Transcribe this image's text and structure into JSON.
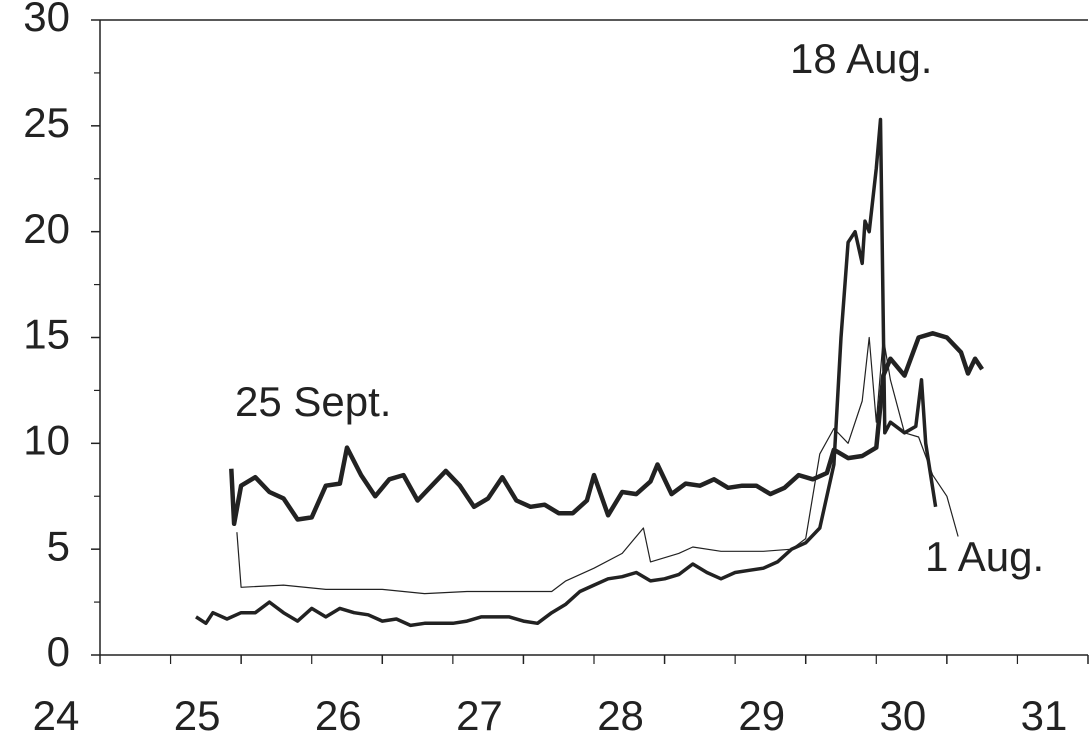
{
  "chart_data": {
    "type": "line",
    "xlim": [
      24,
      31
    ],
    "xticks": [
      24,
      25,
      26,
      27,
      28,
      29,
      30,
      31
    ],
    "xminor": [
      24.5,
      25.5,
      26.5,
      27.5,
      28.5,
      29.5,
      30.5
    ],
    "ylim": [
      0,
      30
    ],
    "yticks": [
      0,
      5,
      10,
      15,
      20,
      25,
      30
    ],
    "yminor": [
      2.5,
      7.5,
      12.5,
      17.5,
      22.5,
      27.5
    ],
    "series": [
      {
        "name": "25 Sept.",
        "color": "#222222",
        "x": [
          24.93,
          24.95,
          25.0,
          25.1,
          25.2,
          25.3,
          25.4,
          25.5,
          25.6,
          25.7,
          25.75,
          25.85,
          25.95,
          26.05,
          26.15,
          26.25,
          26.35,
          26.45,
          26.55,
          26.65,
          26.75,
          26.85,
          26.95,
          27.05,
          27.15,
          27.25,
          27.35,
          27.45,
          27.5,
          27.6,
          27.7,
          27.8,
          27.9,
          27.95,
          28.05,
          28.15,
          28.25,
          28.35,
          28.45,
          28.55,
          28.65,
          28.75,
          28.85,
          28.95,
          29.05,
          29.15,
          29.2,
          29.3,
          29.4,
          29.5,
          29.55,
          29.6,
          29.7,
          29.8,
          29.9,
          30.0,
          30.1,
          30.15,
          30.2,
          30.25
        ],
        "values": [
          8.8,
          6.2,
          8.0,
          8.4,
          7.7,
          7.4,
          6.4,
          6.5,
          8.0,
          8.1,
          9.8,
          8.5,
          7.5,
          8.3,
          8.5,
          7.3,
          8.0,
          8.7,
          8.0,
          7.0,
          7.4,
          8.4,
          7.3,
          7.0,
          7.1,
          6.7,
          6.7,
          7.3,
          8.5,
          6.6,
          7.7,
          7.6,
          8.2,
          9.0,
          7.6,
          8.1,
          8.0,
          8.3,
          7.9,
          8.0,
          8.0,
          7.6,
          7.9,
          8.5,
          8.3,
          8.6,
          9.7,
          9.3,
          9.4,
          9.8,
          13.2,
          14.0,
          13.2,
          15.0,
          15.2,
          15.0,
          14.3,
          13.3,
          14.0,
          13.5
        ]
      },
      {
        "name": "18 Aug.",
        "color": "#222222",
        "x": [
          24.68,
          24.75,
          24.8,
          24.9,
          25.0,
          25.1,
          25.2,
          25.3,
          25.4,
          25.5,
          25.6,
          25.7,
          25.8,
          25.9,
          26.0,
          26.1,
          26.2,
          26.3,
          26.4,
          26.5,
          26.6,
          26.7,
          26.8,
          26.9,
          27.0,
          27.1,
          27.2,
          27.3,
          27.4,
          27.5,
          27.6,
          27.7,
          27.8,
          27.9,
          28.0,
          28.1,
          28.2,
          28.3,
          28.4,
          28.5,
          28.6,
          28.7,
          28.8,
          28.9,
          29.0,
          29.1,
          29.2,
          29.25,
          29.3,
          29.35,
          29.4,
          29.42,
          29.45,
          29.5,
          29.53,
          29.56,
          29.6,
          29.7,
          29.78,
          29.82,
          29.85,
          29.92
        ],
        "values": [
          1.8,
          1.5,
          2.0,
          1.7,
          2.0,
          2.0,
          2.5,
          2.0,
          1.6,
          2.2,
          1.8,
          2.2,
          2.0,
          1.9,
          1.6,
          1.7,
          1.4,
          1.5,
          1.5,
          1.5,
          1.6,
          1.8,
          1.8,
          1.8,
          1.6,
          1.5,
          2.0,
          2.4,
          3.0,
          3.3,
          3.6,
          3.7,
          3.9,
          3.5,
          3.6,
          3.8,
          4.3,
          3.9,
          3.6,
          3.9,
          4.0,
          4.1,
          4.4,
          5.0,
          5.3,
          6.0,
          9.0,
          15,
          19.5,
          20,
          18.5,
          20.5,
          20,
          23,
          25.3,
          10.5,
          11,
          10.5,
          10.8,
          13,
          10,
          7
        ]
      },
      {
        "name": "1 Aug.",
        "color": "#222222",
        "x": [
          24.97,
          25.0,
          25.3,
          25.6,
          26.0,
          26.3,
          26.6,
          27.0,
          27.2,
          27.3,
          27.5,
          27.7,
          27.85,
          27.9,
          28.1,
          28.2,
          28.4,
          28.7,
          28.9,
          29.0,
          29.1,
          29.2,
          29.3,
          29.4,
          29.45,
          29.5,
          29.55,
          29.6,
          29.7,
          29.8,
          29.9,
          30.0,
          30.08
        ],
        "values": [
          5.8,
          3.2,
          3.3,
          3.1,
          3.1,
          2.9,
          3.0,
          3.0,
          3.0,
          3.5,
          4.1,
          4.8,
          6.0,
          4.4,
          4.8,
          5.1,
          4.9,
          4.9,
          5.0,
          5.5,
          9.5,
          10.7,
          10,
          12,
          15,
          11,
          15,
          13,
          10.5,
          10.3,
          8.5,
          7.5,
          5.6
        ]
      }
    ]
  }
}
